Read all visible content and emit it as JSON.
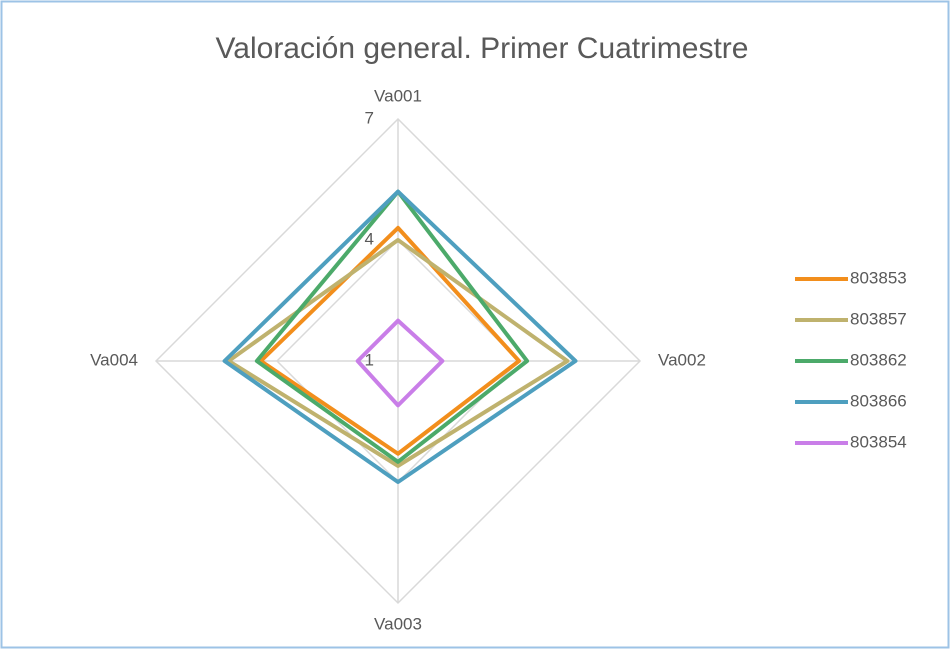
{
  "chart_data": {
    "type": "radar",
    "title": "Valoración general. Primer Cuatrimestre",
    "categories": [
      "Va001",
      "Va002",
      "Va003",
      "Va004"
    ],
    "rlim": [
      1,
      7
    ],
    "rticks": [
      1,
      4,
      7
    ],
    "grid": true,
    "legend": "right",
    "series": [
      {
        "name": "803853",
        "color": "#f28e1c",
        "values": [
          4.3,
          4.0,
          3.3,
          4.4
        ]
      },
      {
        "name": "803857",
        "color": "#bfb26e",
        "values": [
          4.0,
          5.2,
          3.6,
          5.2
        ]
      },
      {
        "name": "803862",
        "color": "#4caa6a",
        "values": [
          5.2,
          4.2,
          3.5,
          4.5
        ]
      },
      {
        "name": "803866",
        "color": "#4e9fbf",
        "values": [
          5.2,
          5.4,
          4.0,
          5.3
        ]
      },
      {
        "name": "803854",
        "color": "#c97ee8",
        "values": [
          2.0,
          2.1,
          2.1,
          2.0
        ]
      }
    ]
  }
}
